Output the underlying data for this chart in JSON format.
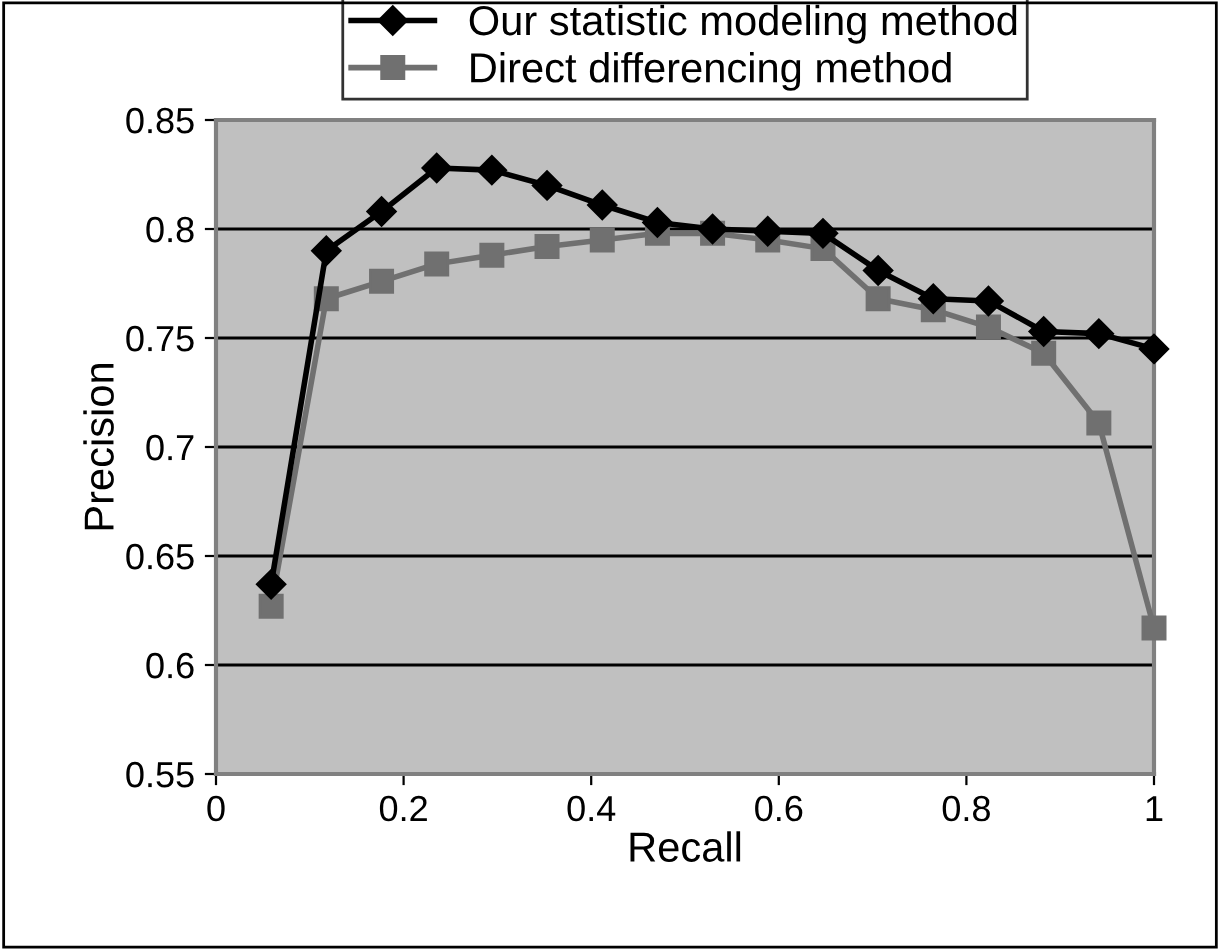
{
  "chart_data": {
    "type": "line",
    "xlabel": "Recall",
    "ylabel": "Precision",
    "x": [
      0.0588,
      0.1176,
      0.1765,
      0.2353,
      0.2941,
      0.3529,
      0.4118,
      0.4706,
      0.5294,
      0.5882,
      0.6471,
      0.7059,
      0.7647,
      0.8235,
      0.8824,
      0.9412,
      1.0
    ],
    "series": [
      {
        "name": "Our statistic modeling method",
        "color": "#000000",
        "marker": "diamond",
        "values": [
          0.637,
          0.79,
          0.808,
          0.828,
          0.827,
          0.82,
          0.811,
          0.803,
          0.8,
          0.799,
          0.798,
          0.781,
          0.768,
          0.767,
          0.753,
          0.752,
          0.745
        ]
      },
      {
        "name": "Direct differencing method",
        "color": "#707070",
        "marker": "square",
        "values": [
          0.627,
          0.768,
          0.776,
          0.784,
          0.788,
          0.792,
          0.795,
          0.798,
          0.798,
          0.795,
          0.791,
          0.768,
          0.763,
          0.755,
          0.743,
          0.711,
          0.617
        ]
      }
    ],
    "xlim": [
      0,
      1
    ],
    "xticks": [
      0,
      0.2,
      0.4,
      0.6,
      0.8,
      1
    ],
    "ylim": [
      0.55,
      0.85
    ],
    "yticks": [
      0.55,
      0.6,
      0.65,
      0.7,
      0.75,
      0.8,
      0.85
    ],
    "grid": "y",
    "legend": "top",
    "line_style": "solid"
  }
}
